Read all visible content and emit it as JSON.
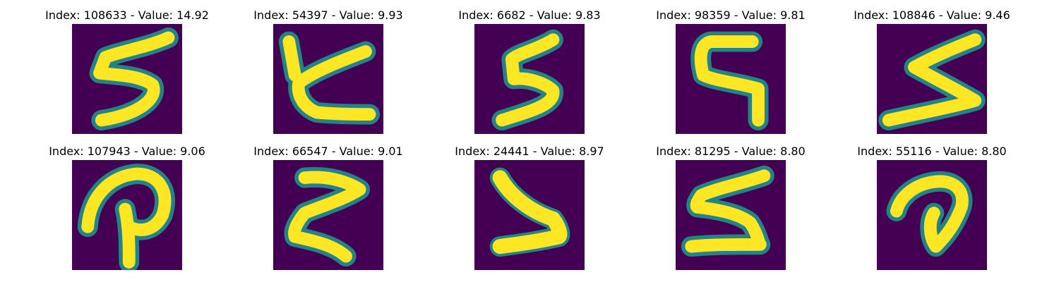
{
  "colors": {
    "background": "#440154",
    "mid": "#21918c",
    "stroke": "#fde725"
  },
  "panels": [
    {
      "title": "Index: 108633 - Value: 14.92",
      "glyph": "digit-5-slanted"
    },
    {
      "title": "Index: 54397 - Value: 9.93",
      "glyph": "digit-5-z-shape"
    },
    {
      "title": "Index: 6682 - Value: 9.83",
      "glyph": "digit-5-wavy"
    },
    {
      "title": "Index: 98359 - Value: 9.81",
      "glyph": "digit-5-blocky"
    },
    {
      "title": "Index: 108846 - Value: 9.46",
      "glyph": "digit-5-flat"
    },
    {
      "title": "Index: 107943 - Value: 9.06",
      "glyph": "loop-p-shape"
    },
    {
      "title": "Index: 66547 - Value: 9.01",
      "glyph": "digit-z-shape"
    },
    {
      "title": "Index: 24441 - Value: 8.97",
      "glyph": "angle-shape"
    },
    {
      "title": "Index: 81295 - Value: 8.80",
      "glyph": "digit-5-serif"
    },
    {
      "title": "Index: 55116 - Value: 8.80",
      "glyph": "loop-d-shape"
    }
  ]
}
